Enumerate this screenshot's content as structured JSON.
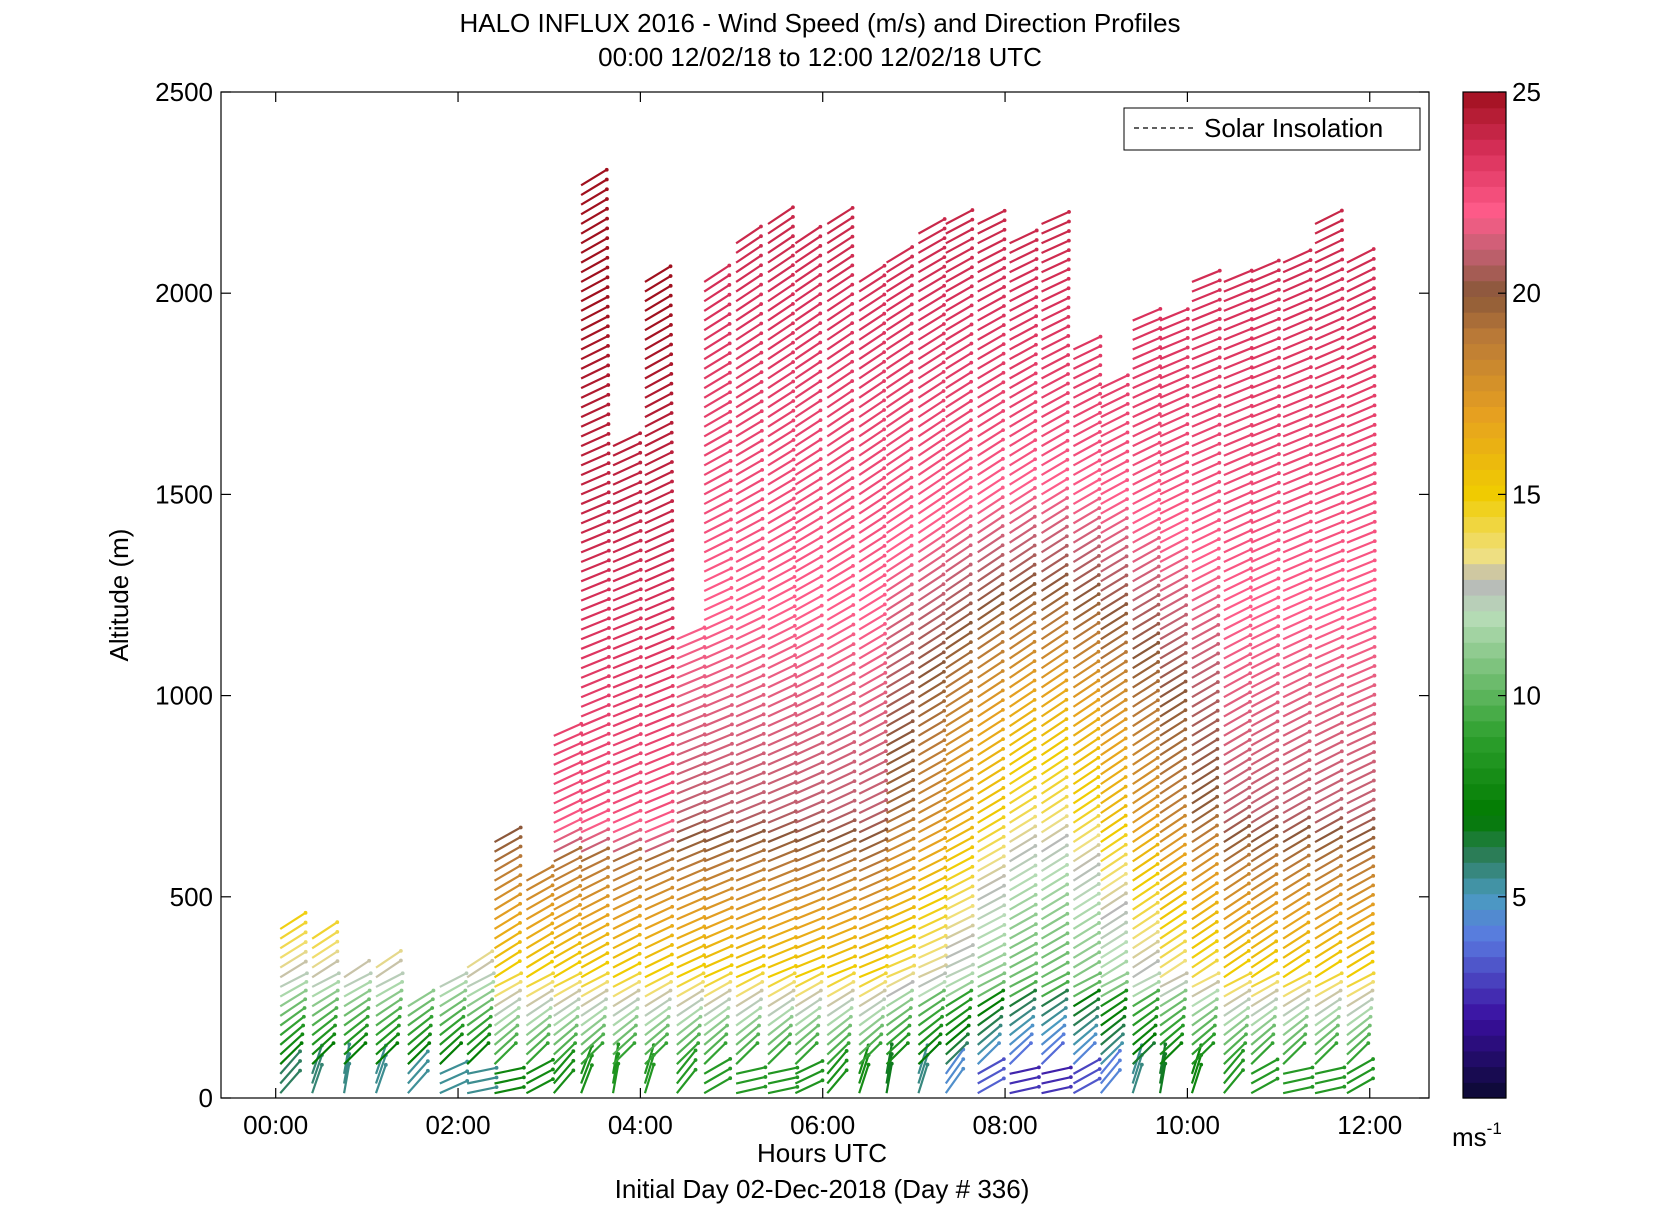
{
  "chart_data": {
    "type": "scatter",
    "title": "HALO INFLUX 2016 - Wind Speed (m/s) and Direction Profiles",
    "subtitle": "00:00 12/02/18 to 12:00 12/02/18  UTC",
    "xlabel": "Hours UTC",
    "ylabel": "Altitude (m)",
    "footer": "Initial Day 02-Dec-2018 (Day # 336)",
    "xlim": [
      -0.6,
      12.65
    ],
    "ylim": [
      0,
      2500
    ],
    "x_ticks": [
      0,
      2,
      4,
      6,
      8,
      10,
      12
    ],
    "x_tick_labels": [
      "00:00",
      "02:00",
      "04:00",
      "06:00",
      "08:00",
      "10:00",
      "12:00"
    ],
    "y_ticks": [
      0,
      500,
      1000,
      1500,
      2000,
      2500
    ],
    "y_tick_labels": [
      "0",
      "500",
      "1000",
      "1500",
      "2000",
      "2500"
    ],
    "legend": {
      "entries": [
        "Solar Insolation"
      ],
      "position": "top-right",
      "style": "dashed"
    },
    "colorbar": {
      "range": [
        0,
        25
      ],
      "ticks": [
        5,
        10,
        15,
        20,
        25
      ],
      "tick_labels": [
        "5",
        "10",
        "15",
        "20",
        "25"
      ],
      "unit_label": "ms",
      "unit_exponent": "-1",
      "stops": [
        {
          "v": 0,
          "color": "#0a0a30"
        },
        {
          "v": 2,
          "color": "#3a0fa0"
        },
        {
          "v": 4,
          "color": "#5a7ae0"
        },
        {
          "v": 5,
          "color": "#4a9bc0"
        },
        {
          "v": 6,
          "color": "#2e7d5c"
        },
        {
          "v": 7,
          "color": "#007a00"
        },
        {
          "v": 9,
          "color": "#2ea02e"
        },
        {
          "v": 12,
          "color": "#b8ddb8"
        },
        {
          "v": 12.8,
          "color": "#b8b8b8"
        },
        {
          "v": 13.5,
          "color": "#f0e080"
        },
        {
          "v": 15,
          "color": "#f0cc00"
        },
        {
          "v": 17,
          "color": "#e6a020"
        },
        {
          "v": 19,
          "color": "#b87838"
        },
        {
          "v": 20,
          "color": "#8a5838"
        },
        {
          "v": 21,
          "color": "#c06070"
        },
        {
          "v": 22,
          "color": "#ff5c8a"
        },
        {
          "v": 23.5,
          "color": "#d8305a"
        },
        {
          "v": 25,
          "color": "#a0101e"
        }
      ]
    },
    "profiles": [
      {
        "t": 0.05,
        "top": 430
      },
      {
        "t": 0.4,
        "top": 400
      },
      {
        "t": 0.75,
        "top": 300
      },
      {
        "t": 1.1,
        "top": 330
      },
      {
        "t": 1.45,
        "top": 250
      },
      {
        "t": 1.8,
        "top": 290
      },
      {
        "t": 2.1,
        "top": 330
      },
      {
        "t": 2.4,
        "top": 640
      },
      {
        "t": 2.75,
        "top": 540
      },
      {
        "t": 3.05,
        "top": 920
      },
      {
        "t": 3.35,
        "top": 2280
      },
      {
        "t": 3.7,
        "top": 1640
      },
      {
        "t": 4.05,
        "top": 2030
      },
      {
        "t": 4.4,
        "top": 1140
      },
      {
        "t": 4.7,
        "top": 2050
      },
      {
        "t": 5.05,
        "top": 2130
      },
      {
        "t": 5.4,
        "top": 2180
      },
      {
        "t": 5.7,
        "top": 2140
      },
      {
        "t": 6.05,
        "top": 2180
      },
      {
        "t": 6.4,
        "top": 2030
      },
      {
        "t": 6.7,
        "top": 2080
      },
      {
        "t": 7.05,
        "top": 2150
      },
      {
        "t": 7.35,
        "top": 2180
      },
      {
        "t": 7.7,
        "top": 2180
      },
      {
        "t": 8.05,
        "top": 2140
      },
      {
        "t": 8.4,
        "top": 2180
      },
      {
        "t": 8.75,
        "top": 1870
      },
      {
        "t": 9.05,
        "top": 1780
      },
      {
        "t": 9.4,
        "top": 1950
      },
      {
        "t": 9.7,
        "top": 1940
      },
      {
        "t": 10.05,
        "top": 2040
      },
      {
        "t": 10.4,
        "top": 2040
      },
      {
        "t": 10.7,
        "top": 2060
      },
      {
        "t": 11.05,
        "top": 2080
      },
      {
        "t": 11.4,
        "top": 2180
      },
      {
        "t": 11.75,
        "top": 2090
      }
    ]
  }
}
